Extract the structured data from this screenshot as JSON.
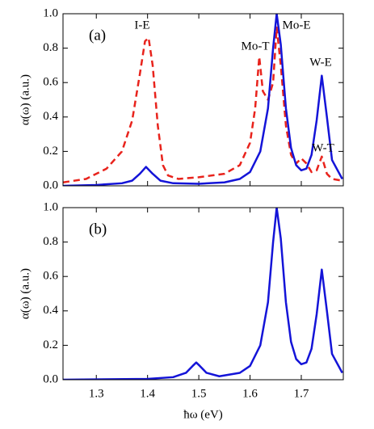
{
  "chart_data": [
    {
      "type": "line",
      "ylabel": "α(ω) (a.u.)",
      "annotations": [
        "(a)",
        "I-E",
        "Mo-T",
        "Mo-E",
        "W-T",
        "W-E"
      ],
      "xlim": [
        1.235,
        1.782
      ],
      "ylim": [
        0,
        1
      ],
      "xticks": [
        1.3,
        1.4,
        1.5,
        1.6,
        1.7
      ],
      "yticks": [
        {
          "value": 0,
          "label": "0.0"
        },
        0.2,
        0.4,
        0.6,
        0.8,
        {
          "value": 1,
          "label": "1.0"
        }
      ],
      "series": [
        {
          "color": "#e8231c",
          "style": "dashed",
          "x": [
            1.235,
            1.28,
            1.32,
            1.35,
            1.37,
            1.385,
            1.395,
            1.402,
            1.41,
            1.42,
            1.43,
            1.44,
            1.46,
            1.5,
            1.55,
            1.58,
            1.6,
            1.61,
            1.618,
            1.625,
            1.635,
            1.645,
            1.652,
            1.66,
            1.67,
            1.68,
            1.69,
            1.7,
            1.71,
            1.72,
            1.73,
            1.74,
            1.75,
            1.76,
            1.78
          ],
          "values": [
            0.02,
            0.04,
            0.1,
            0.2,
            0.38,
            0.65,
            0.84,
            0.86,
            0.7,
            0.35,
            0.12,
            0.06,
            0.04,
            0.05,
            0.07,
            0.12,
            0.25,
            0.45,
            0.75,
            0.55,
            0.5,
            0.6,
            0.92,
            0.7,
            0.35,
            0.18,
            0.13,
            0.16,
            0.13,
            0.08,
            0.09,
            0.17,
            0.07,
            0.04,
            0.03
          ]
        },
        {
          "color": "#1414d8",
          "style": "solid",
          "x": [
            1.235,
            1.3,
            1.35,
            1.37,
            1.385,
            1.397,
            1.41,
            1.425,
            1.45,
            1.5,
            1.55,
            1.58,
            1.6,
            1.62,
            1.635,
            1.645,
            1.652,
            1.66,
            1.67,
            1.68,
            1.69,
            1.7,
            1.71,
            1.72,
            1.73,
            1.74,
            1.75,
            1.76,
            1.78
          ],
          "values": [
            0.0,
            0.005,
            0.015,
            0.03,
            0.07,
            0.11,
            0.07,
            0.03,
            0.015,
            0.012,
            0.02,
            0.04,
            0.08,
            0.2,
            0.45,
            0.8,
            1.0,
            0.82,
            0.45,
            0.22,
            0.12,
            0.09,
            0.1,
            0.18,
            0.38,
            0.64,
            0.4,
            0.15,
            0.04
          ]
        }
      ]
    },
    {
      "type": "line",
      "ylabel": "α(ω) (a.u.)",
      "xlabel": "ħω (eV)",
      "annotations": [
        "(b)"
      ],
      "xlim": [
        1.235,
        1.782
      ],
      "ylim": [
        0,
        1
      ],
      "xticks": [
        1.3,
        1.4,
        1.5,
        1.6,
        1.7
      ],
      "yticks": [
        {
          "value": 0,
          "label": "0.0"
        },
        0.2,
        0.4,
        0.6,
        0.8,
        {
          "value": 1,
          "label": "1.0"
        }
      ],
      "series": [
        {
          "color": "#1414d8",
          "style": "solid",
          "x": [
            1.235,
            1.4,
            1.45,
            1.475,
            1.488,
            1.495,
            1.502,
            1.515,
            1.54,
            1.58,
            1.6,
            1.62,
            1.635,
            1.645,
            1.652,
            1.66,
            1.67,
            1.68,
            1.69,
            1.7,
            1.71,
            1.72,
            1.73,
            1.74,
            1.75,
            1.76,
            1.78
          ],
          "values": [
            0.0,
            0.005,
            0.015,
            0.04,
            0.08,
            0.1,
            0.08,
            0.04,
            0.02,
            0.04,
            0.08,
            0.2,
            0.45,
            0.8,
            1.0,
            0.82,
            0.45,
            0.22,
            0.12,
            0.09,
            0.1,
            0.18,
            0.38,
            0.64,
            0.4,
            0.15,
            0.04
          ]
        }
      ]
    }
  ]
}
